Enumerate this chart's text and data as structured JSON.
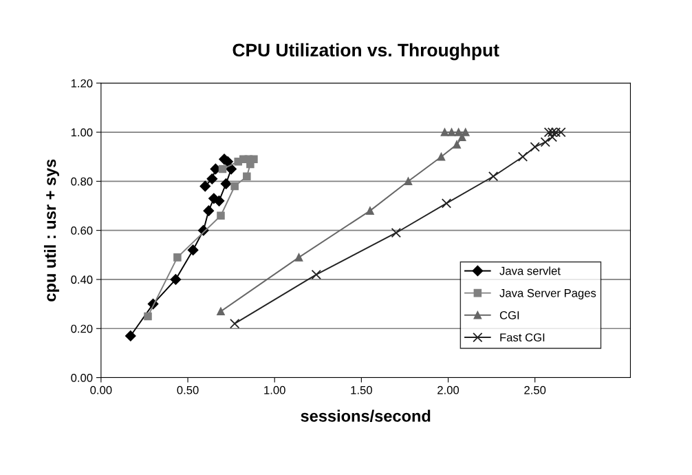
{
  "chart_data": {
    "type": "line",
    "title": "CPU Utilization vs. Throughput",
    "xlabel": "sessions/second",
    "ylabel": "cpu util : usr + sys",
    "xlim": [
      0,
      3.05
    ],
    "xticks": [
      {
        "value": 0,
        "label": "0.00"
      },
      {
        "value": 0.5,
        "label": "0.50"
      },
      {
        "value": 1,
        "label": "1.00"
      },
      {
        "value": 1.5,
        "label": "1.50"
      },
      {
        "value": 2,
        "label": "2.00"
      },
      {
        "value": 2.5,
        "label": "2.50"
      }
    ],
    "ylim": [
      0,
      1.2
    ],
    "yticks": [
      {
        "value": 0,
        "label": "0.00"
      },
      {
        "value": 0.2,
        "label": "0.20"
      },
      {
        "value": 0.4,
        "label": "0.40"
      },
      {
        "value": 0.6,
        "label": "0.60"
      },
      {
        "value": 0.8,
        "label": "0.80"
      },
      {
        "value": 1.0,
        "label": "1.00"
      },
      {
        "value": 1.2,
        "label": "1.20"
      }
    ],
    "grid": "y",
    "legend": "lower right",
    "series": [
      {
        "name": "Java servlet",
        "color": "#000000",
        "marker": "diamond",
        "x": [
          0.17,
          0.3,
          0.43,
          0.53,
          0.59,
          0.62,
          0.65,
          0.68,
          0.72,
          0.75,
          0.73,
          0.71,
          0.68,
          0.66,
          0.64,
          0.6
        ],
        "values": [
          0.17,
          0.3,
          0.4,
          0.52,
          0.6,
          0.68,
          0.73,
          0.72,
          0.79,
          0.85,
          0.88,
          0.89,
          null,
          0.85,
          0.81,
          0.78
        ]
      },
      {
        "name": "Java Server Pages",
        "color": "#808080",
        "marker": "square",
        "x": [
          0.27,
          0.44,
          0.69,
          0.77,
          0.84,
          0.86,
          0.88,
          0.85,
          0.82,
          0.79,
          0.7
        ],
        "values": [
          0.25,
          0.49,
          0.66,
          0.78,
          0.82,
          0.87,
          0.89,
          0.89,
          0.89,
          0.88,
          0.85
        ]
      },
      {
        "name": "CGI",
        "color": "#666666",
        "marker": "triangle",
        "x": [
          0.69,
          1.14,
          1.55,
          1.77,
          1.96,
          2.05,
          2.08,
          2.1,
          2.06,
          2.02,
          1.98
        ],
        "values": [
          0.27,
          0.49,
          0.68,
          0.8,
          0.9,
          0.95,
          0.98,
          1.0,
          1.0,
          1.0,
          1.0
        ]
      },
      {
        "name": "Fast CGI",
        "color": "#222222",
        "marker": "cross",
        "x": [
          0.77,
          1.24,
          1.7,
          1.99,
          2.26,
          2.43,
          2.5,
          2.56,
          2.6,
          2.62,
          2.65,
          2.6,
          2.58
        ],
        "values": [
          0.22,
          0.42,
          0.59,
          0.71,
          0.82,
          0.9,
          0.94,
          0.96,
          0.98,
          1.0,
          1.0,
          1.0,
          1.0
        ]
      }
    ]
  }
}
